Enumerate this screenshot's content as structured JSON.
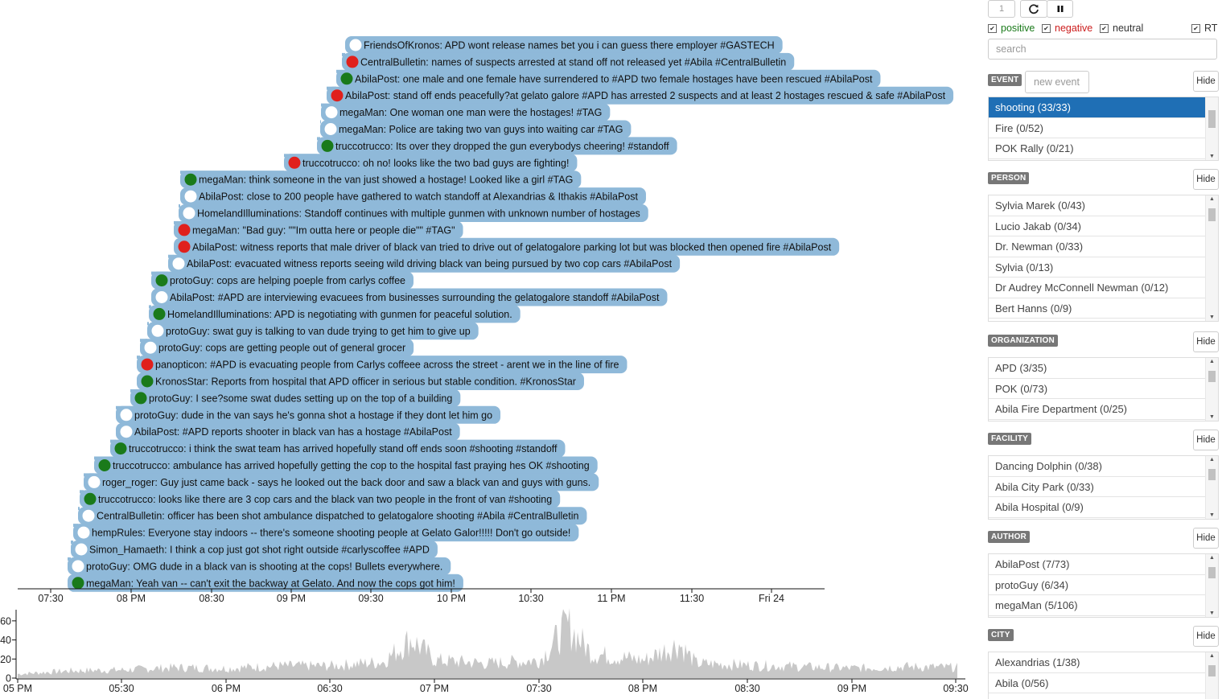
{
  "colors": {
    "bubble": "#8fb9d9",
    "positive": "#1a7a1a",
    "negative": "#e0201c",
    "neutral": "#ffffff",
    "selected": "#1f6fb5",
    "area": "#c8c8c8"
  },
  "tweets": [
    {
      "text": "FriendsOfKronos: APD wont release names bet you i can guess there employer #GASTECH",
      "sentiment": "neutral"
    },
    {
      "text": "CentralBulletin: names of suspects arrested at stand off not released yet #Abila #CentralBulletin",
      "sentiment": "negative"
    },
    {
      "text": "AbilaPost: one male and one female have surrendered to #APD two female hostages have been rescued #AbilaPost",
      "sentiment": "positive"
    },
    {
      "text": "AbilaPost: stand off ends peacefully?at gelato galore #APD has arrested 2 suspects and at least 2 hostages rescued & safe #AbilaPost",
      "sentiment": "negative"
    },
    {
      "text": "megaMan: One woman one man were the hostages! #TAG",
      "sentiment": "neutral"
    },
    {
      "text": "megaMan: Police are taking two van guys into waiting car #TAG",
      "sentiment": "neutral"
    },
    {
      "text": "truccotrucco: Its over they dropped the gun everybodys cheering! #standoff",
      "sentiment": "positive"
    },
    {
      "text": "truccotrucco: oh no! looks like the two bad guys are fighting!",
      "sentiment": "negative"
    },
    {
      "text": "megaMan: think someone in the van just showed a hostage! Looked like a girl #TAG",
      "sentiment": "positive"
    },
    {
      "text": "AbilaPost: close to 200 people have gathered to watch standoff at Alexandrias & Ithakis #AbilaPost",
      "sentiment": "neutral"
    },
    {
      "text": "HomelandIlluminations: Standoff continues with multiple gunmen with unknown number of hostages",
      "sentiment": "neutral"
    },
    {
      "text": "megaMan: \"Bad guy: \"\"Im outta here or people die\"\" #TAG\"",
      "sentiment": "negative"
    },
    {
      "text": "AbilaPost: witness reports that male driver of black van tried to drive out of gelatogalore parking lot but was blocked then opened fire #AbilaPost",
      "sentiment": "negative"
    },
    {
      "text": "AbilaPost: evacuated witness reports seeing wild driving black van being pursued by two cop cars #AbilaPost",
      "sentiment": "neutral"
    },
    {
      "text": "protoGuy: cops are helping poeple from carlys coffee",
      "sentiment": "positive"
    },
    {
      "text": "AbilaPost: #APD are interviewing evacuees from businesses surrounding the gelatogalore standoff #AbilaPost",
      "sentiment": "neutral"
    },
    {
      "text": "HomelandIlluminations: APD is negotiating with gunmen for peaceful solution.",
      "sentiment": "positive"
    },
    {
      "text": "protoGuy: swat guy is talking to van dude trying to get him to give up",
      "sentiment": "neutral"
    },
    {
      "text": "protoGuy: cops are getting people out of general grocer",
      "sentiment": "neutral"
    },
    {
      "text": "panopticon: #APD is evacuating people from Carlys coffeee across the street - arent we in the line of fire",
      "sentiment": "negative"
    },
    {
      "text": "KronosStar: Reports from hospital that APD officer in serious but stable condition. #KronosStar",
      "sentiment": "positive"
    },
    {
      "text": "protoGuy: I see?some swat dudes setting up on the top of a building",
      "sentiment": "positive"
    },
    {
      "text": "protoGuy: dude in the van says he's gonna shot a hostage if they dont let him go",
      "sentiment": "neutral"
    },
    {
      "text": "AbilaPost: #APD reports shooter in black van has a hostage #AbilaPost",
      "sentiment": "neutral"
    },
    {
      "text": "truccotrucco: i think the swat team has arrived hopefully stand off ends soon #shooting #standoff",
      "sentiment": "positive"
    },
    {
      "text": "truccotrucco: ambulance has arrived hopefully getting the cop to the hospital fast praying hes OK #shooting",
      "sentiment": "positive"
    },
    {
      "text": "roger_roger: Guy just came back - says he looked out the back door and saw a black van and guys with guns.",
      "sentiment": "neutral"
    },
    {
      "text": "truccotrucco: looks like there are 3 cop cars and the black van two people in the front of van #shooting",
      "sentiment": "positive"
    },
    {
      "text": "CentralBulletin: officer has been shot ambulance dispatched to gelatogalore shooting #Abila #CentralBulletin",
      "sentiment": "neutral"
    },
    {
      "text": "hempRules: Everyone stay indoors -- there's someone shooting people at Gelato Galor!!!!! Don't go outside!",
      "sentiment": "neutral"
    },
    {
      "text": "Simon_Hamaeth: I think a cop just got shot right outside #carlyscoffee #APD",
      "sentiment": "neutral"
    },
    {
      "text": "protoGuy: OMG dude in a black van is shooting at the cops! Bullets everywhere.",
      "sentiment": "neutral"
    },
    {
      "text": "megaMan: Yeah van -- can't exit the backway at Gelato. And now the cops got him!",
      "sentiment": "positive"
    }
  ],
  "main_axis": {
    "ticks": [
      "07:30",
      "08 PM",
      "08:30",
      "09 PM",
      "09:30",
      "10 PM",
      "10:30",
      "11 PM",
      "11:30",
      "Fri 24"
    ]
  },
  "chart_data": {
    "type": "area",
    "x_ticks": [
      "05 PM",
      "05:30",
      "06 PM",
      "06:30",
      "07 PM",
      "07:30",
      "08 PM",
      "08:30",
      "09 PM",
      "09:30"
    ],
    "y_ticks": [
      "0",
      "20",
      "40",
      "60"
    ],
    "ylim": [
      0,
      70
    ],
    "x": [
      "05:00",
      "05:15",
      "05:30",
      "05:45",
      "06:00",
      "06:15",
      "06:30",
      "06:45",
      "06:53",
      "07:00",
      "07:15",
      "07:30",
      "07:38",
      "07:45",
      "08:00",
      "08:10",
      "08:15",
      "08:30",
      "08:45",
      "09:00",
      "09:15",
      "09:30"
    ],
    "values": [
      5,
      9,
      10,
      13,
      12,
      15,
      15,
      20,
      48,
      22,
      18,
      22,
      65,
      30,
      22,
      42,
      18,
      16,
      14,
      12,
      14,
      13
    ]
  },
  "controls": {
    "page": "1",
    "refresh_icon": "refresh-icon",
    "pause_icon": "pause-icon"
  },
  "filters": {
    "positive": "positive",
    "negative": "negative",
    "neutral": "neutral",
    "rt": "RT",
    "check": "✔"
  },
  "search": {
    "placeholder": "search"
  },
  "hide_label": "Hide",
  "event": {
    "badge": "EVENT",
    "new_placeholder": "new event",
    "items": [
      "shooting (33/33)",
      "Fire (0/52)",
      "POK Rally (0/21)"
    ]
  },
  "person": {
    "badge": "PERSON",
    "items": [
      "Sylvia Marek (0/43)",
      "Lucio Jakab (0/34)",
      "Dr. Newman (0/33)",
      "Sylvia (0/13)",
      "Dr Audrey McConnell Newman (0/12)",
      "Bert Hanns (0/9)"
    ]
  },
  "organization": {
    "badge": "ORGANIZATION",
    "items": [
      "APD (3/35)",
      "POK (0/73)",
      "Abila Fire Department (0/25)"
    ]
  },
  "facility": {
    "badge": "FACILITY",
    "items": [
      "Dancing Dolphin (0/38)",
      "Abila City Park (0/33)",
      "Abila Hospital (0/9)"
    ]
  },
  "author": {
    "badge": "AUTHOR",
    "items": [
      "AbilaPost (7/73)",
      "protoGuy (6/34)",
      "megaMan (5/106)"
    ]
  },
  "city": {
    "badge": "CITY",
    "items": [
      "Alexandrias (1/38)",
      "Abila (0/56)"
    ]
  }
}
